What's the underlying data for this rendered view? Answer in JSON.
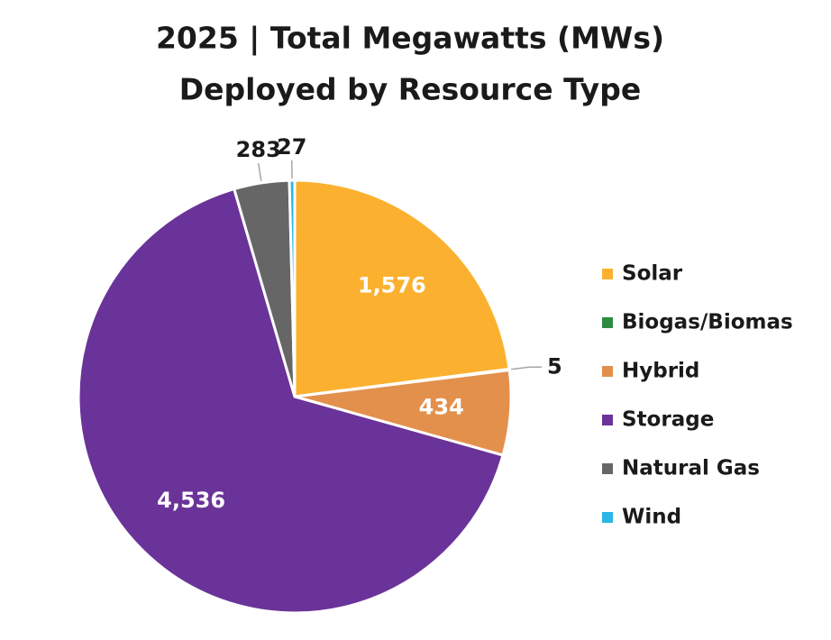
{
  "chart_data": {
    "type": "pie",
    "title": [
      "2025 | Total Megawatts (MWs)",
      "Deployed by Resource Type"
    ],
    "categories": [
      "Solar",
      "Biogas/Biomas",
      "Hybrid",
      "Storage",
      "Natural Gas",
      "Wind"
    ],
    "values": [
      1576,
      5,
      434,
      4536,
      283,
      27
    ],
    "value_labels": [
      "1,576",
      "5",
      "434",
      "4,536",
      "283",
      "27"
    ],
    "colors": [
      "#fbb12f",
      "#2e8b45",
      "#e3904d",
      "#6a3399",
      "#666666",
      "#2bb5e8"
    ],
    "legend": "right"
  }
}
